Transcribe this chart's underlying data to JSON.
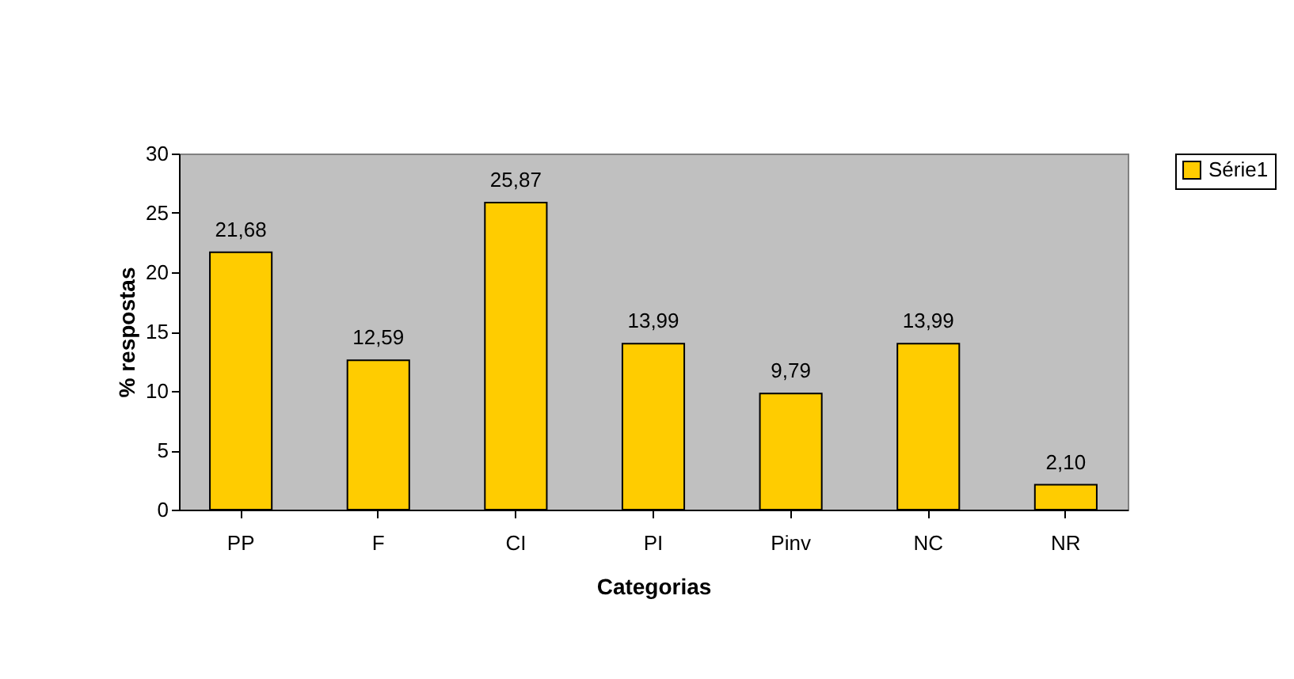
{
  "chart_data": {
    "type": "bar",
    "xlabel": "Categorias",
    "ylabel": "% respostas",
    "categories": [
      "PP",
      "F",
      "CI",
      "PI",
      "Pinv",
      "NC",
      "NR"
    ],
    "series": [
      {
        "name": "Série1",
        "color": "#ffcc00",
        "values": [
          21.68,
          12.59,
          25.87,
          13.99,
          9.79,
          13.99,
          2.1
        ],
        "value_labels": [
          "21,68",
          "12,59",
          "25,87",
          "13,99",
          "9,79",
          "13,99",
          "2,10"
        ]
      }
    ],
    "ylim": [
      0,
      30
    ],
    "yticks": [
      0,
      5,
      10,
      15,
      20,
      25,
      30
    ],
    "grid": false,
    "legend": "right"
  }
}
